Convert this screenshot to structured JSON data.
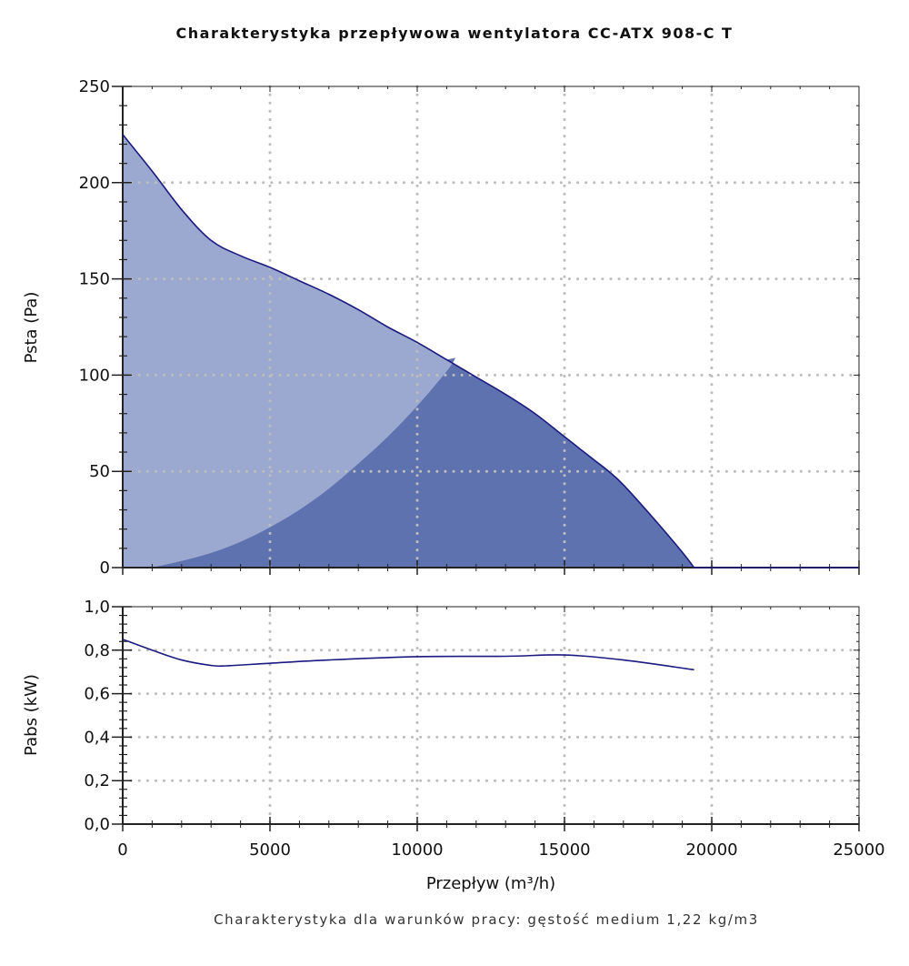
{
  "chart_data": [
    {
      "type": "area",
      "title": "Charakterystyka przepływowa wentylatora CC-ATX 908-C T",
      "xlabel": "Przepływ (m³/h)",
      "ylabel": "Psta (Pa)",
      "xlim": [
        0,
        25000
      ],
      "ylim": [
        0,
        250
      ],
      "x_ticks": [
        "0",
        "5000",
        "10000",
        "15000",
        "20000",
        "25000"
      ],
      "y_ticks": [
        "0",
        "50",
        "100",
        "150",
        "200",
        "250"
      ],
      "grid": true,
      "series": [
        {
          "name": "fan curve",
          "x": [
            0,
            1000,
            2000,
            3000,
            4000,
            5000,
            6000,
            7000,
            8000,
            9000,
            10000,
            11000,
            12000,
            13000,
            14000,
            15000,
            16000,
            16500,
            17000,
            18000,
            19000,
            19400
          ],
          "y": [
            225,
            206,
            186,
            170,
            162,
            156,
            149,
            142,
            134,
            125,
            117,
            108,
            99,
            90,
            80,
            68,
            56,
            50,
            43,
            26,
            8,
            0
          ]
        },
        {
          "name": "operating range",
          "x": [
            1000,
            2000,
            3000,
            4000,
            5000,
            6000,
            7000,
            8000,
            9000,
            10000,
            11000,
            11300
          ],
          "y": [
            0,
            3.4,
            7.6,
            13.4,
            21,
            30,
            41,
            54,
            68,
            84,
            102,
            109
          ]
        }
      ],
      "colors": {
        "light_fill": "#9ba8cf",
        "dark_fill": "#5e72b0",
        "line": "#1a1a80",
        "grid": "#bdbdbd"
      }
    },
    {
      "type": "line",
      "xlabel": "Przepływ (m³/h)",
      "ylabel": "Pabs (kW)",
      "xlim": [
        0,
        25000
      ],
      "ylim": [
        0,
        1.0
      ],
      "x_ticks": [
        "0",
        "5000",
        "10000",
        "15000",
        "20000",
        "25000"
      ],
      "y_ticks": [
        "0,0",
        "0,2",
        "0,4",
        "0,6",
        "0,8",
        "1,0"
      ],
      "grid": true,
      "series": [
        {
          "name": "Pabs",
          "x": [
            0,
            1000,
            2000,
            3000,
            3500,
            5000,
            7000,
            10000,
            13000,
            15000,
            17000,
            19400
          ],
          "y": [
            0.85,
            0.8,
            0.755,
            0.73,
            0.728,
            0.74,
            0.755,
            0.77,
            0.772,
            0.778,
            0.755,
            0.71
          ]
        }
      ]
    }
  ],
  "footer": "Charakterystyka dla warunków pracy: gęstość medium 1,22 kg/m3"
}
